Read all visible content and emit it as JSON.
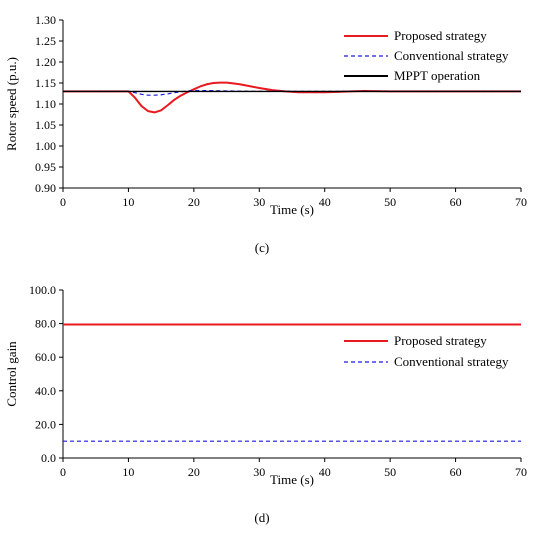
{
  "chart_data": [
    {
      "type": "line",
      "panel_label": "(c)",
      "xlabel": "Time (s)",
      "ylabel": "Rotor speed (p.u.)",
      "xlim": [
        0,
        70
      ],
      "ylim": [
        0.9,
        1.3
      ],
      "xticks": [
        0,
        10,
        20,
        30,
        40,
        50,
        60,
        70
      ],
      "yticks": [
        0.9,
        0.95,
        1.0,
        1.05,
        1.1,
        1.15,
        1.2,
        1.25,
        1.3
      ],
      "ytick_decimals": 2,
      "grid": false,
      "legend_position": "top-right",
      "series": [
        {
          "name": "Proposed strategy",
          "color": "#e8191f",
          "style": "solid",
          "points": [
            [
              0,
              1.13
            ],
            [
              10,
              1.13
            ],
            [
              11,
              1.115
            ],
            [
              12,
              1.095
            ],
            [
              13,
              1.083
            ],
            [
              14,
              1.08
            ],
            [
              15,
              1.085
            ],
            [
              16,
              1.097
            ],
            [
              17,
              1.11
            ],
            [
              18,
              1.12
            ],
            [
              19,
              1.128
            ],
            [
              20,
              1.135
            ],
            [
              21,
              1.142
            ],
            [
              22,
              1.147
            ],
            [
              23,
              1.15
            ],
            [
              24,
              1.151
            ],
            [
              25,
              1.151
            ],
            [
              26,
              1.149
            ],
            [
              27,
              1.147
            ],
            [
              28,
              1.144
            ],
            [
              29,
              1.141
            ],
            [
              30,
              1.138
            ],
            [
              32,
              1.133
            ],
            [
              34,
              1.13
            ],
            [
              36,
              1.128
            ],
            [
              38,
              1.128
            ],
            [
              40,
              1.128
            ],
            [
              42,
              1.129
            ],
            [
              44,
              1.13
            ],
            [
              46,
              1.131
            ],
            [
              50,
              1.13
            ],
            [
              70,
              1.13
            ]
          ]
        },
        {
          "name": "Conventional strategy",
          "color": "#1a1adb",
          "style": "dashed",
          "points": [
            [
              0,
              1.13
            ],
            [
              10,
              1.13
            ],
            [
              11,
              1.127
            ],
            [
              12,
              1.123
            ],
            [
              13,
              1.121
            ],
            [
              14,
              1.121
            ],
            [
              15,
              1.122
            ],
            [
              16,
              1.124
            ],
            [
              17,
              1.127
            ],
            [
              18,
              1.129
            ],
            [
              19,
              1.131
            ],
            [
              20,
              1.132
            ],
            [
              22,
              1.132
            ],
            [
              25,
              1.131
            ],
            [
              30,
              1.13
            ],
            [
              70,
              1.13
            ]
          ]
        },
        {
          "name": "MPPT operation",
          "color": "#000000",
          "style": "solid",
          "points": [
            [
              0,
              1.13
            ],
            [
              70,
              1.13
            ]
          ]
        }
      ]
    },
    {
      "type": "line",
      "panel_label": "(d)",
      "xlabel": "Time (s)",
      "ylabel": "Control gain",
      "xlim": [
        0,
        70
      ],
      "ylim": [
        0,
        100
      ],
      "xticks": [
        0,
        10,
        20,
        30,
        40,
        50,
        60,
        70
      ],
      "yticks": [
        0.0,
        20.0,
        40.0,
        60.0,
        80.0,
        100.0
      ],
      "ytick_decimals": 1,
      "grid": false,
      "legend_position": "right",
      "series": [
        {
          "name": "Proposed strategy",
          "color": "#e8191f",
          "style": "solid",
          "points": [
            [
              0,
              79.5
            ],
            [
              70,
              79.5
            ]
          ]
        },
        {
          "name": "Conventional strategy",
          "color": "#1a1adb",
          "style": "dashed",
          "points": [
            [
              0,
              10
            ],
            [
              70,
              10
            ]
          ]
        }
      ]
    }
  ]
}
